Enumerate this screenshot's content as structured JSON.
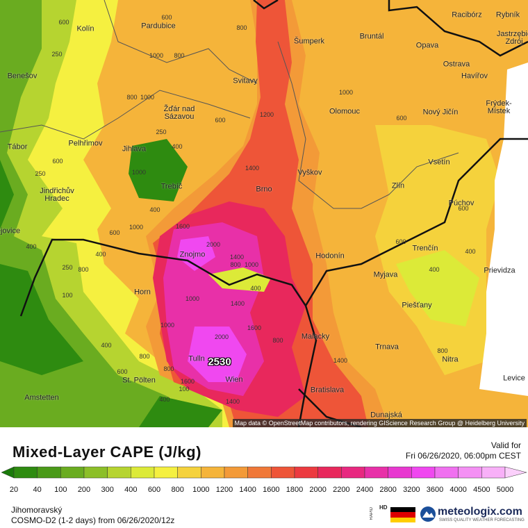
{
  "map": {
    "places": [
      "Kolín",
      "Pardubice",
      "Šumperk",
      "Bruntál",
      "Racibórz",
      "Rybník",
      "Jastrzębie\nZdrój",
      "Opava",
      "Ostrava",
      "Havířov",
      "Benešov",
      "Svitavy",
      "Olomouc",
      "Frýdek-\nMístek",
      "Nový Jičín",
      "Žďár nad\nSázavou",
      "Pelhřimov",
      "Tábor",
      "Jihlava",
      "Vyškov",
      "Vsetín",
      "Trebíč",
      "Brno",
      "Zlín",
      "Jindřichův\nHradec",
      "Púchov",
      "ějovice",
      "Znojmo",
      "Hodonín",
      "Trenčín",
      "Prievidza",
      "Myjava",
      "Horn",
      "Piešťany",
      "Malacky",
      "Trnava",
      "Nitra",
      "Tulln",
      "Wien",
      "St. Pölten",
      "Levice",
      "Bratislava",
      "Amstetten",
      "Dunajská"
    ],
    "contour_labels": [
      600,
      250,
      1000,
      800,
      800,
      600,
      1000,
      600,
      800,
      1000,
      1200,
      600,
      250,
      400,
      600,
      250,
      1400,
      600,
      600,
      400,
      400,
      1600,
      1000,
      400,
      600,
      2000,
      1400,
      800,
      1000,
      400,
      400,
      250,
      800,
      400,
      1000,
      1400,
      1600,
      2000,
      1000,
      400,
      800,
      1400,
      800,
      1600,
      800,
      600,
      400,
      100,
      1400,
      100,
      1000,
      800
    ],
    "max_label": 2530,
    "attribution": "Map data © OpenStreetMap contributors, rendering GIScience Research Group @ Heidelberg University"
  },
  "legend": {
    "title": "Mixed-Layer CAPE (J/kg)",
    "valid_label": "Valid for",
    "valid_time": "Fri 06/26/2020, 06:00pm CEST",
    "ticks": [
      20,
      40,
      100,
      200,
      300,
      400,
      600,
      800,
      1000,
      1200,
      1400,
      1600,
      1800,
      2000,
      2200,
      2400,
      2800,
      3200,
      3600,
      4000,
      4500,
      5000
    ],
    "colors": [
      "#1a7a0a",
      "#2e8b10",
      "#4a9a18",
      "#6aac20",
      "#8cbf28",
      "#b6d430",
      "#dcea38",
      "#f5f040",
      "#f5d23c",
      "#f5b43a",
      "#f39a38",
      "#f07838",
      "#ee5538",
      "#ec3a40",
      "#e8285c",
      "#e82880",
      "#e830a8",
      "#e838d0",
      "#f048f0",
      "#f070f0",
      "#f490f4",
      "#f8b0f8",
      "#fbd0fb"
    ]
  },
  "footer": {
    "region": "Jihomoravský",
    "model": "COSMO-D2 (1-2 days) from 06/26/2020/12z",
    "badge_top": "RAPID",
    "badge_hd": "HD",
    "brand": "meteologix.com",
    "tagline": "SWISS QUALITY WEATHER FORECASTING"
  }
}
